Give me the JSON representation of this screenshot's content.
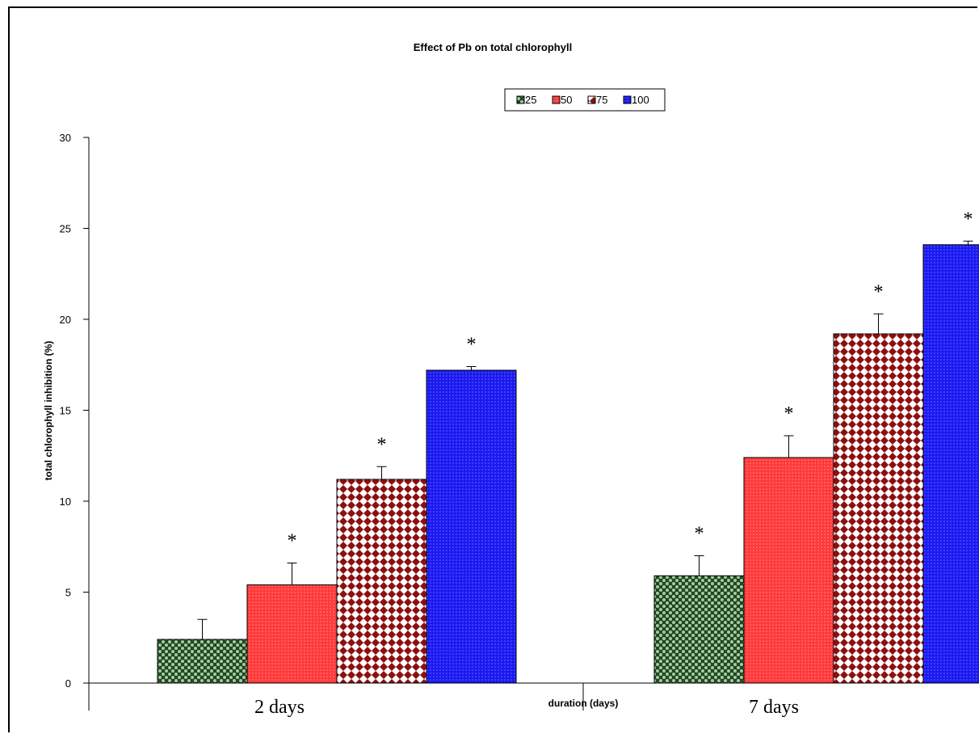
{
  "chart_data": {
    "type": "bar",
    "title": "Effect of Pb on total chlorophyll",
    "xlabel": "duration (days)",
    "ylabel": "total chlorophyll inhibition (%)",
    "ylim": [
      0,
      30
    ],
    "yticks": [
      "0",
      "5",
      "10",
      "15",
      "20",
      "25",
      "30"
    ],
    "categories": [
      "2 days",
      "7 days"
    ],
    "legend_position": "top-center",
    "grid": false,
    "series": [
      {
        "name": "25",
        "values": [
          2.4,
          5.9
        ],
        "errors": [
          1.1,
          1.1
        ],
        "significant": [
          false,
          true
        ],
        "color": "#2e5e2e",
        "pattern": "dots-dark"
      },
      {
        "name": "50",
        "values": [
          5.4,
          12.4
        ],
        "errors": [
          1.2,
          1.2
        ],
        "significant": [
          true,
          true
        ],
        "color": "#ff4040",
        "pattern": "fine-red"
      },
      {
        "name": "75",
        "values": [
          11.2,
          19.2
        ],
        "errors": [
          0.7,
          1.1
        ],
        "significant": [
          true,
          true
        ],
        "color": "#8b1a1a",
        "pattern": "diamonds"
      },
      {
        "name": "100",
        "values": [
          17.2,
          24.1
        ],
        "errors": [
          0.2,
          0.2
        ],
        "significant": [
          true,
          true
        ],
        "color": "#2020ee",
        "pattern": "fine-blue"
      }
    ],
    "significance_marker": "*"
  }
}
